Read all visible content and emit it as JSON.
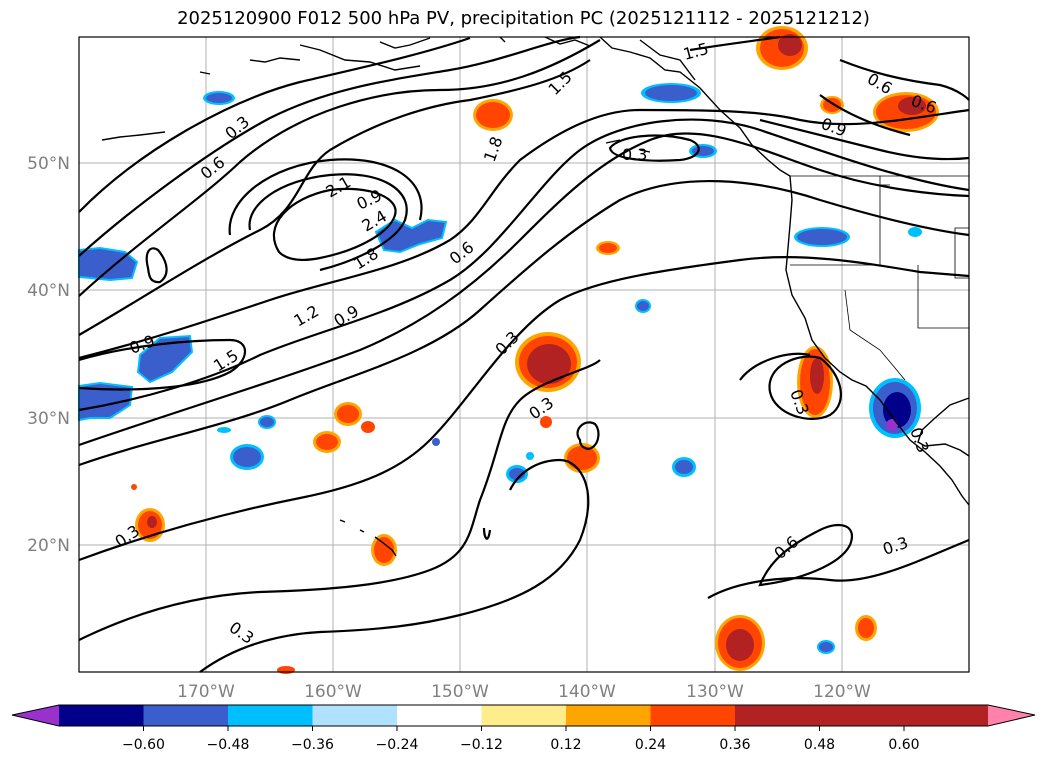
{
  "title": "2025120900 F012 500 hPa PV, precipitation PC (2025121112 - 2025121212)",
  "map": {
    "lon_range": [
      -180,
      -110
    ],
    "lat_range": [
      10,
      60
    ],
    "lat_labels": [
      "50°N",
      "40°N",
      "30°N",
      "20°N"
    ],
    "lon_labels": [
      "170°W",
      "160°W",
      "150°W",
      "140°W",
      "130°W",
      "120°W"
    ]
  },
  "contour_labels": [
    "0.3",
    "0.6",
    "0.9",
    "1.2",
    "1.5",
    "1.8",
    "2.1",
    "2.4",
    "0.6",
    "0.9",
    "1.5",
    "1.8",
    "0.3",
    "0.6",
    "0.9",
    "0.3",
    "0.3",
    "0.3",
    "0.6",
    "0.3",
    "0.3",
    "0.6",
    "0.9",
    "1.5",
    "0.3",
    "0.3"
  ],
  "colorbar": {
    "ticks": [
      "−0.60",
      "−0.48",
      "−0.36",
      "−0.24",
      "−0.12",
      "0.12",
      "0.24",
      "0.36",
      "0.48",
      "0.60"
    ],
    "colors": [
      "#9932cc",
      "#00008b",
      "#3a5fcd",
      "#00bfff",
      "#b0e2ff",
      "#ffffff",
      "#ffec8b",
      "#ffa500",
      "#ff4500",
      "#b22222",
      "#ff82ab"
    ]
  }
}
